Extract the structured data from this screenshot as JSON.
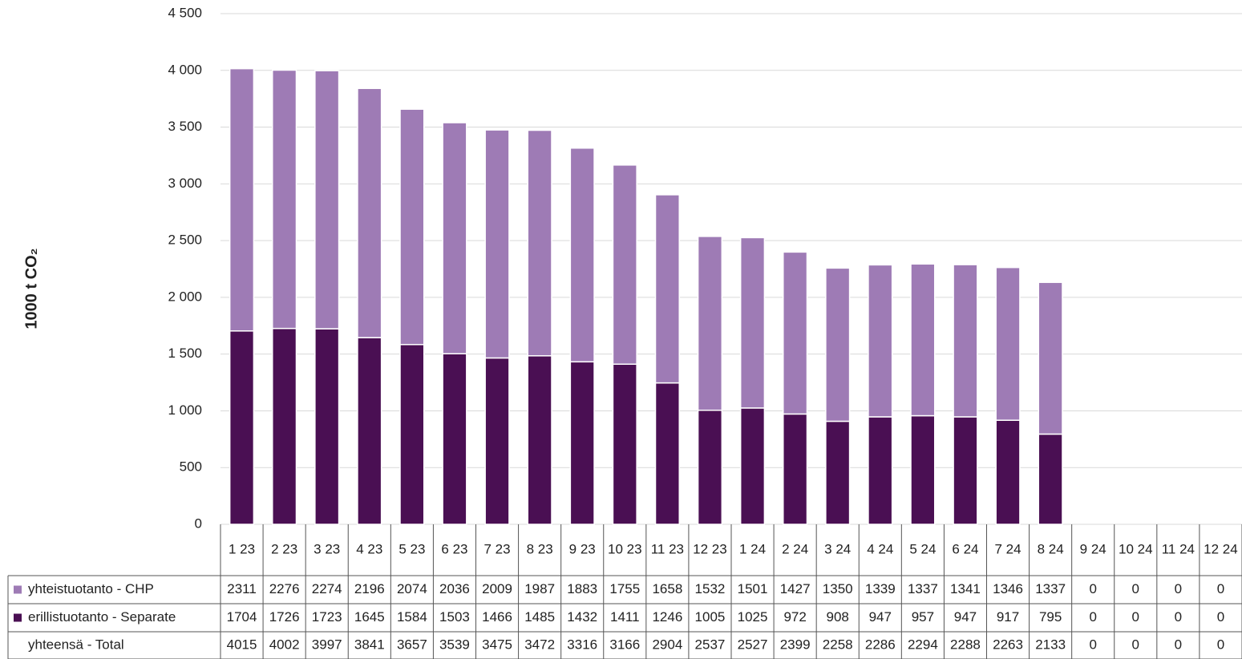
{
  "chart_data": {
    "type": "bar",
    "stacked": true,
    "y_label": "1000 t CO₂",
    "categories": [
      "1 23",
      "2 23",
      "3 23",
      "4 23",
      "5 23",
      "6 23",
      "7 23",
      "8 23",
      "9 23",
      "10 23",
      "11 23",
      "12 23",
      "1 24",
      "2 24",
      "3 24",
      "4 24",
      "5 24",
      "6 24",
      "7 24",
      "8 24",
      "9 24",
      "10 24",
      "11 24",
      "12 24"
    ],
    "series": [
      {
        "name": "yhteistuotanto - CHP",
        "color": "#9e7bb5",
        "values": [
          2311,
          2276,
          2274,
          2196,
          2074,
          2036,
          2009,
          1987,
          1883,
          1755,
          1658,
          1532,
          1501,
          1427,
          1350,
          1339,
          1337,
          1341,
          1346,
          1337,
          0,
          0,
          0,
          0
        ]
      },
      {
        "name": "erillistuotanto - Separate",
        "color": "#4a0f53",
        "values": [
          1704,
          1726,
          1723,
          1645,
          1584,
          1503,
          1466,
          1485,
          1432,
          1411,
          1246,
          1005,
          1025,
          972,
          908,
          947,
          957,
          947,
          917,
          795,
          0,
          0,
          0,
          0
        ]
      }
    ],
    "total": {
      "name": "yhteensä - Total",
      "values": [
        4015,
        4002,
        3997,
        3841,
        3657,
        3539,
        3475,
        3472,
        3316,
        3166,
        2904,
        2537,
        2527,
        2399,
        2258,
        2286,
        2294,
        2288,
        2263,
        2133,
        0,
        0,
        0,
        0
      ]
    },
    "ylim": [
      0,
      4500
    ],
    "yticks": [
      0,
      500,
      {
        "value": 1000,
        "label": "1 000"
      },
      {
        "value": 1500,
        "label": "1 500"
      },
      {
        "value": 2000,
        "label": "2 000"
      },
      {
        "value": 2500,
        "label": "2 500"
      },
      {
        "value": 3000,
        "label": "3 000"
      },
      {
        "value": 3500,
        "label": "3 500"
      },
      {
        "value": 4000,
        "label": "4 000"
      },
      {
        "value": 4500,
        "label": "4 500"
      }
    ],
    "grid": true
  }
}
